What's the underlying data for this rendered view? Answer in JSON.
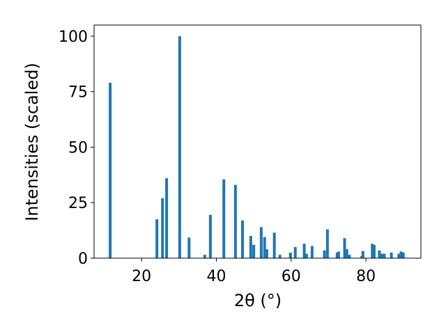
{
  "chart_data": {
    "type": "bar",
    "xlabel": "2θ (°)",
    "ylabel": "Intensities (scaled)",
    "x": [
      11.6,
      24.1,
      25.6,
      26.7,
      30.2,
      32.7,
      36.9,
      38.4,
      42.0,
      45.1,
      47.0,
      49.2,
      50.0,
      52.0,
      52.9,
      53.5,
      55.5,
      57.0,
      59.8,
      61.1,
      63.5,
      64.1,
      65.6,
      68.9,
      69.7,
      72.3,
      72.7,
      74.3,
      74.9,
      75.6,
      78.9,
      79.2,
      81.7,
      82.2,
      83.6,
      84.2,
      84.9,
      86.8,
      88.8,
      89.4,
      90.0
    ],
    "values": [
      79,
      17.5,
      27,
      36,
      100,
      9.3,
      1.5,
      19.5,
      35.5,
      33,
      17,
      10,
      6,
      14,
      9.5,
      4,
      11.5,
      1.5,
      2.5,
      5,
      6.5,
      2,
      5.5,
      3.5,
      13,
      2.5,
      3,
      9,
      4,
      1.5,
      1,
      3.2,
      6.5,
      6,
      3.5,
      2,
      2,
      2.5,
      2,
      3,
      2.5
    ],
    "color": "#1f77b4",
    "xlim": [
      7.3,
      94.7
    ],
    "xticks": [
      20,
      40,
      60,
      80
    ],
    "ylim": [
      0,
      105
    ],
    "yticks": [
      0,
      25,
      50,
      75,
      100
    ]
  }
}
